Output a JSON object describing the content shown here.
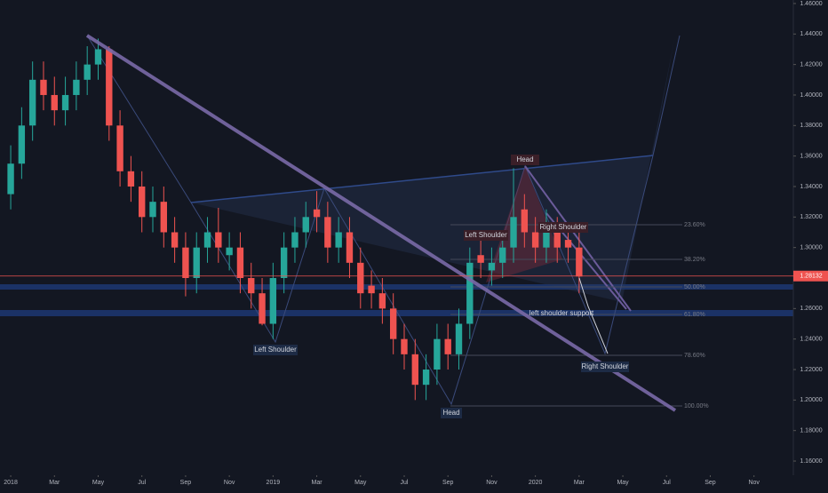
{
  "chart_data": {
    "type": "candlestick",
    "x": [
      0,
      0.5,
      1,
      1.5,
      2,
      2.5,
      3,
      3.5,
      4,
      4.5,
      5,
      5.5,
      6,
      6.5,
      7,
      7.5,
      8,
      8.5,
      9,
      9.5,
      10,
      10.5,
      11,
      11.5,
      12,
      12.5,
      13,
      13.5,
      14,
      14.5,
      15,
      15.5,
      16,
      16.5,
      17,
      17.5,
      18,
      18.5,
      19,
      19.5,
      20,
      20.5,
      21,
      21.5,
      22,
      22.5,
      23,
      23.5,
      24,
      24.5,
      25,
      25.5,
      26
    ],
    "open": [
      1.335,
      1.355,
      1.38,
      1.41,
      1.4,
      1.39,
      1.4,
      1.41,
      1.42,
      1.43,
      1.38,
      1.35,
      1.34,
      1.32,
      1.33,
      1.31,
      1.3,
      1.28,
      1.3,
      1.31,
      1.295,
      1.3,
      1.28,
      1.27,
      1.25,
      1.28,
      1.3,
      1.31,
      1.325,
      1.32,
      1.3,
      1.31,
      1.29,
      1.275,
      1.27,
      1.26,
      1.24,
      1.23,
      1.21,
      1.22,
      1.24,
      1.23,
      1.25,
      1.295,
      1.285,
      1.29,
      1.3,
      1.325,
      1.31,
      1.3,
      1.31,
      1.305,
      1.3
    ],
    "high": [
      1.367,
      1.392,
      1.422,
      1.422,
      1.412,
      1.412,
      1.422,
      1.432,
      1.437,
      1.432,
      1.39,
      1.36,
      1.35,
      1.34,
      1.34,
      1.32,
      1.31,
      1.31,
      1.32,
      1.326,
      1.31,
      1.31,
      1.29,
      1.28,
      1.29,
      1.31,
      1.32,
      1.33,
      1.337,
      1.33,
      1.32,
      1.32,
      1.3,
      1.285,
      1.28,
      1.27,
      1.25,
      1.24,
      1.23,
      1.25,
      1.25,
      1.26,
      1.3,
      1.305,
      1.3,
      1.31,
      1.352,
      1.335,
      1.32,
      1.325,
      1.32,
      1.315,
      1.31
    ],
    "low": [
      1.325,
      1.345,
      1.37,
      1.39,
      1.38,
      1.38,
      1.39,
      1.4,
      1.41,
      1.37,
      1.34,
      1.33,
      1.31,
      1.31,
      1.3,
      1.29,
      1.268,
      1.27,
      1.29,
      1.29,
      1.285,
      1.27,
      1.26,
      1.249,
      1.24,
      1.27,
      1.29,
      1.3,
      1.31,
      1.29,
      1.29,
      1.28,
      1.26,
      1.26,
      1.25,
      1.23,
      1.22,
      1.2,
      1.2,
      1.21,
      1.22,
      1.22,
      1.24,
      1.28,
      1.275,
      1.28,
      1.29,
      1.3,
      1.29,
      1.29,
      1.29,
      1.29,
      1.27
    ],
    "close": [
      1.355,
      1.38,
      1.41,
      1.4,
      1.39,
      1.4,
      1.41,
      1.42,
      1.43,
      1.38,
      1.35,
      1.34,
      1.32,
      1.33,
      1.31,
      1.3,
      1.28,
      1.3,
      1.31,
      1.3,
      1.3,
      1.28,
      1.27,
      1.25,
      1.28,
      1.3,
      1.31,
      1.32,
      1.32,
      1.3,
      1.31,
      1.29,
      1.27,
      1.27,
      1.26,
      1.24,
      1.23,
      1.21,
      1.22,
      1.24,
      1.23,
      1.25,
      1.29,
      1.29,
      1.29,
      1.3,
      1.32,
      1.31,
      1.3,
      1.31,
      1.3,
      1.3,
      1.281
    ],
    "up_color": "#26a69a",
    "down_color": "#ef5350",
    "xlim": [
      -0.49,
      35.8
    ],
    "xticks": [
      {
        "value": 0,
        "label": "2018"
      },
      {
        "value": 2,
        "label": "Mar"
      },
      {
        "value": 4,
        "label": "May"
      },
      {
        "value": 6,
        "label": "Jul"
      },
      {
        "value": 8,
        "label": "Sep"
      },
      {
        "value": 10,
        "label": "Nov"
      },
      {
        "value": 12,
        "label": "2019"
      },
      {
        "value": 14,
        "label": "Mar"
      },
      {
        "value": 16,
        "label": "May"
      },
      {
        "value": 18,
        "label": "Jul"
      },
      {
        "value": 20,
        "label": "Sep"
      },
      {
        "value": 22,
        "label": "Nov"
      },
      {
        "value": 24,
        "label": "2020"
      },
      {
        "value": 26,
        "label": "Mar"
      },
      {
        "value": 28,
        "label": "May"
      },
      {
        "value": 30,
        "label": "Jul"
      },
      {
        "value": 32,
        "label": "Sep"
      },
      {
        "value": 34,
        "label": "Nov"
      }
    ],
    "ylim": [
      1.1507,
      1.4623
    ],
    "yticks": [
      {
        "value": 1.16,
        "label": "1.16000"
      },
      {
        "value": 1.18,
        "label": "1.18000"
      },
      {
        "value": 1.2,
        "label": "1.20000"
      },
      {
        "value": 1.22,
        "label": "1.22000"
      },
      {
        "value": 1.24,
        "label": "1.24000"
      },
      {
        "value": 1.26,
        "label": "1.26000"
      },
      {
        "value": 1.28,
        "label": "1.28000"
      },
      {
        "value": 1.3,
        "label": "1.30000"
      },
      {
        "value": 1.32,
        "label": "1.32000"
      },
      {
        "value": 1.34,
        "label": "1.34000"
      },
      {
        "value": 1.36,
        "label": "1.36000"
      },
      {
        "value": 1.38,
        "label": "1.38000"
      },
      {
        "value": 1.4,
        "label": "1.40000"
      },
      {
        "value": 1.42,
        "label": "1.42000"
      },
      {
        "value": 1.44,
        "label": "1.44000"
      },
      {
        "value": 1.46,
        "label": "1.46000"
      }
    ],
    "last_price": 1.28132,
    "annotations": {
      "head_top": "Head",
      "left_shoulder_top": "Left Shoulder",
      "right_shoulder_top": "Right Shoulder",
      "left_shoulder_bottom": "Left Shoulder",
      "head_bottom": "Head",
      "right_shoulder_bottom": "Right Shoulder",
      "support": "left shoulder support"
    },
    "fib_labels": [
      "23.60%",
      "38.20%",
      "50.00%",
      "61.80%",
      "78.60%",
      "100.00%"
    ]
  }
}
